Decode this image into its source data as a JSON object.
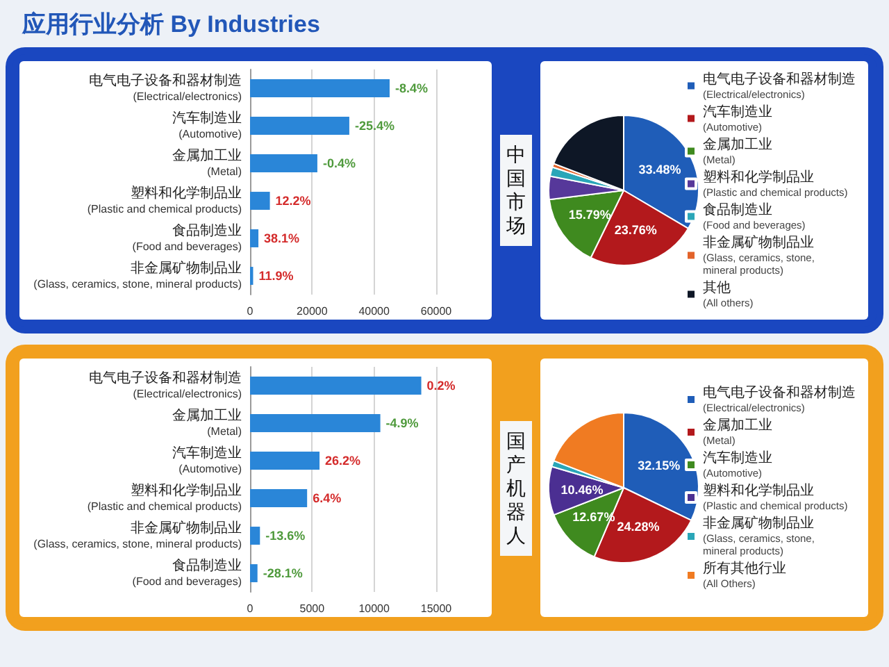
{
  "chart_data": [
    {
      "type": "bar",
      "title": "应用行业分析 By Industries",
      "orientation": "horizontal",
      "categories": [
        "电气电子设备和器材制造\n(Electrical/electronics)",
        "汽车制造业\n(Automotive)",
        "金属加工业\n(Metal)",
        "塑料和化学制品业\n(Plastic and chemical products)",
        "食品制造业\n(Food and beverages)",
        "非金属矿物制品业\n(Glass, ceramics, stone, mineral products)"
      ],
      "values": [
        45000,
        32000,
        21700,
        6400,
        2700,
        1000
      ],
      "color": "#2a86d8",
      "xlim": [
        0,
        60000
      ],
      "xticks": [
        0,
        20000,
        40000,
        60000
      ],
      "grid": "x",
      "annotations": [
        {
          "text": "-8.4%",
          "x": 45000,
          "y": "电气电子设备和器材制造\n(Electrical/electronics)"
        },
        {
          "text": "-25.4%",
          "x": 32000,
          "y": "汽车制造业\n(Automotive)"
        },
        {
          "text": "-0.4%",
          "x": 21700,
          "y": "金属加工业\n(Metal)"
        },
        {
          "text": "12.2%",
          "x": 6400,
          "y": "塑料和化学制品业\n(Plastic and chemical products)"
        },
        {
          "text": "38.1%",
          "x": 2700,
          "y": "食品制造业\n(Food and beverages)"
        },
        {
          "text": "11.9%",
          "x": 1000,
          "y": "非金属矿物制品业\n(Glass, ceramics, stone, mineral products)"
        }
      ]
    },
    {
      "type": "pie",
      "title": "中国市场",
      "categories": [
        "电气电子设备和器材制造\n(Electrical/electronics)",
        "汽车制造业\n(Automotive)",
        "金属加工业\n(Metal)",
        "塑料和化学制品业\n(Plastic and chemical products)",
        "食品制造业\n(Food and beverages)",
        "非金属矿物制品业\n(Glass, ceramics, stone,\nmineral products)",
        "其他\n(All others)"
      ],
      "values": [
        33.48,
        23.76,
        15.79,
        5.0,
        2.0,
        0.8,
        19.17
      ],
      "value_labels": [
        "33.48%",
        "23.76%",
        "15.79%",
        null,
        null,
        null,
        null
      ],
      "colors": [
        "#1f5db8",
        "#b3191c",
        "#3f8a1f",
        "#56389a",
        "#2aa6b8",
        "#e2632a",
        "#0e1726"
      ],
      "legend": "right"
    },
    {
      "type": "bar",
      "orientation": "horizontal",
      "categories": [
        "电气电子设备和器材制造\n(Electrical/electronics)",
        "金属加工业\n(Metal)",
        "汽车制造业\n(Automotive)",
        "塑料和化学制品业\n(Plastic and chemical products)",
        "非金属矿物制品业\n(Glass, ceramics, stone, mineral products)",
        "食品制造业\n(Food and beverages)"
      ],
      "values": [
        13800,
        10500,
        5600,
        4600,
        800,
        600
      ],
      "color": "#2a86d8",
      "xlim": [
        0,
        15000
      ],
      "xticks": [
        0,
        5000,
        10000,
        15000
      ],
      "grid": "x",
      "annotations": [
        {
          "text": "0.2%",
          "x": 13800,
          "y": "电气电子设备和器材制造\n(Electrical/electronics)"
        },
        {
          "text": "-4.9%",
          "x": 10500,
          "y": "金属加工业\n(Metal)"
        },
        {
          "text": "26.2%",
          "x": 5600,
          "y": "汽车制造业\n(Automotive)"
        },
        {
          "text": "6.4%",
          "x": 4600,
          "y": "塑料和化学制品业\n(Plastic and chemical products)"
        },
        {
          "text": "-13.6%",
          "x": 800,
          "y": "非金属矿物制品业\n(Glass, ceramics, stone, mineral products)"
        },
        {
          "text": "-28.1%",
          "x": 600,
          "y": "食品制造业\n(Food and beverages)"
        }
      ]
    },
    {
      "type": "pie",
      "title": "国产机器人",
      "categories": [
        "电气电子设备和器材制造\n(Electrical/electronics)",
        "金属加工业\n(Metal)",
        "汽车制造业\n(Automotive)",
        "塑料和化学制品业\n(Plastic and chemical products)",
        "非金属矿物制品业\n(Glass, ceramics, stone,\nmineral products)",
        "所有其他行业\n(All Others)"
      ],
      "values": [
        32.15,
        24.28,
        12.67,
        10.46,
        1.3,
        19.14
      ],
      "value_labels": [
        "32.15%",
        "24.28%",
        "12.67%",
        "10.46%",
        null,
        null
      ],
      "colors": [
        "#1f5db8",
        "#b3191c",
        "#3f8a1f",
        "#4b2f92",
        "#2aa6b8",
        "#f07b22"
      ],
      "legend": "right"
    }
  ]
}
